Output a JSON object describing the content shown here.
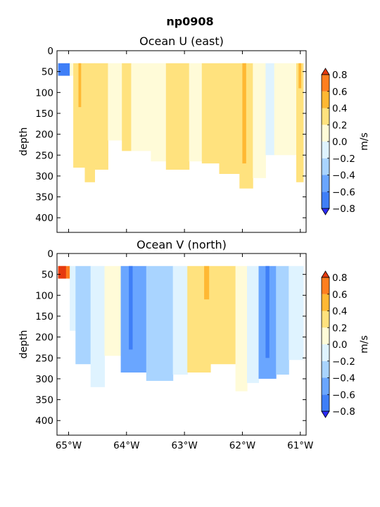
{
  "chart_data": {
    "type": "contour",
    "suptitle": "np0908",
    "x_ticks": [
      "65°W",
      "64°W",
      "63°W",
      "62°W",
      "61°W"
    ],
    "x_tick_values": [
      -65,
      -64,
      -63,
      -62,
      -61
    ],
    "xlim": [
      -65.2,
      -60.9
    ],
    "levels": [
      -0.8,
      -0.6,
      -0.4,
      -0.2,
      0.0,
      0.2,
      0.4,
      0.6,
      0.8
    ],
    "level_labels": [
      "0.8",
      "0.6",
      "0.4",
      "0.2",
      "0.0",
      "−0.2",
      "−0.4",
      "−0.6",
      "−0.8"
    ],
    "colors": [
      "#2b2bff",
      "#3f7ff7",
      "#6aa6ff",
      "#a9d4ff",
      "#dff3ff",
      "#fffbd8",
      "#ffe27e",
      "#ffb833",
      "#ff7f1f",
      "#e63a0f"
    ],
    "panels": [
      {
        "title": "Ocean U (east)",
        "ylabel": "depth",
        "y_ticks": [
          "0",
          "50",
          "100",
          "150",
          "200",
          "250",
          "300",
          "350",
          "400"
        ],
        "y_tick_values": [
          0,
          50,
          100,
          150,
          200,
          250,
          300,
          350,
          400
        ],
        "ylim": [
          435,
          0
        ],
        "colorbar_label": "m/s",
        "columns": [
          {
            "x": [
              -65.18,
              -64.98
            ],
            "depth": [
              30,
              60
            ],
            "level": -0.7
          },
          {
            "x": [
              -64.98,
              -64.92
            ],
            "depth": [
              30,
              60
            ],
            "level": 0.1
          },
          {
            "x": [
              -64.92,
              -64.72
            ],
            "depth": [
              30,
              280
            ],
            "level": 0.3
          },
          {
            "x": [
              -64.72,
              -64.55
            ],
            "depth": [
              30,
              315
            ],
            "level": 0.3
          },
          {
            "x": [
              -64.55,
              -64.32
            ],
            "depth": [
              30,
              285
            ],
            "level": 0.3
          },
          {
            "x": [
              -64.32,
              -64.08
            ],
            "depth": [
              30,
              215
            ],
            "level": 0.1
          },
          {
            "x": [
              -64.08,
              -63.92
            ],
            "depth": [
              30,
              240
            ],
            "level": 0.3
          },
          {
            "x": [
              -63.92,
              -63.58
            ],
            "depth": [
              30,
              240
            ],
            "level": 0.1
          },
          {
            "x": [
              -63.58,
              -63.32
            ],
            "depth": [
              30,
              265
            ],
            "level": 0.1
          },
          {
            "x": [
              -63.32,
              -62.92
            ],
            "depth": [
              30,
              285
            ],
            "level": 0.3
          },
          {
            "x": [
              -62.92,
              -62.7
            ],
            "depth": [
              30,
              265
            ],
            "level": 0.1
          },
          {
            "x": [
              -62.7,
              -62.4
            ],
            "depth": [
              30,
              270
            ],
            "level": 0.3
          },
          {
            "x": [
              -62.4,
              -62.05
            ],
            "depth": [
              30,
              295
            ],
            "level": 0.3
          },
          {
            "x": [
              -62.05,
              -61.82
            ],
            "depth": [
              30,
              330
            ],
            "level": 0.3
          },
          {
            "x": [
              -61.82,
              -61.6
            ],
            "depth": [
              30,
              305
            ],
            "level": 0.1
          },
          {
            "x": [
              -61.6,
              -61.45
            ],
            "depth": [
              30,
              250
            ],
            "level": -0.1
          },
          {
            "x": [
              -61.45,
              -61.07
            ],
            "depth": [
              30,
              250
            ],
            "level": 0.1
          },
          {
            "x": [
              -61.07,
              -60.95
            ],
            "depth": [
              30,
              315
            ],
            "level": 0.3
          }
        ],
        "highlights": [
          {
            "x": [
              -64.83,
              -64.79
            ],
            "depth": [
              30,
              135
            ],
            "level": 0.5
          },
          {
            "x": [
              -62.0,
              -61.94
            ],
            "depth": [
              30,
              270
            ],
            "level": 0.5
          },
          {
            "x": [
              -61.03,
              -60.99
            ],
            "depth": [
              30,
              90
            ],
            "level": 0.5
          }
        ]
      },
      {
        "title": "Ocean V (north)",
        "ylabel": "depth",
        "y_ticks": [
          "0",
          "50",
          "100",
          "150",
          "200",
          "250",
          "300",
          "350",
          "400"
        ],
        "y_tick_values": [
          0,
          50,
          100,
          150,
          200,
          250,
          300,
          350,
          400
        ],
        "ylim": [
          435,
          0
        ],
        "colorbar_label": "m/s",
        "columns": [
          {
            "x": [
              -65.18,
              -64.98
            ],
            "depth": [
              30,
              60
            ],
            "level": 0.7
          },
          {
            "x": [
              -64.98,
              -64.88
            ],
            "depth": [
              30,
              185
            ],
            "level": -0.1
          },
          {
            "x": [
              -64.88,
              -64.62
            ],
            "depth": [
              30,
              265
            ],
            "level": -0.3
          },
          {
            "x": [
              -64.62,
              -64.38
            ],
            "depth": [
              30,
              320
            ],
            "level": -0.1
          },
          {
            "x": [
              -64.38,
              -64.1
            ],
            "depth": [
              30,
              245
            ],
            "level": 0.1
          },
          {
            "x": [
              -64.1,
              -63.66
            ],
            "depth": [
              30,
              285
            ],
            "level": -0.5
          },
          {
            "x": [
              -63.66,
              -63.2
            ],
            "depth": [
              30,
              305
            ],
            "level": -0.3
          },
          {
            "x": [
              -63.2,
              -62.95
            ],
            "depth": [
              30,
              290
            ],
            "level": -0.1
          },
          {
            "x": [
              -62.95,
              -62.55
            ],
            "depth": [
              30,
              285
            ],
            "level": 0.3
          },
          {
            "x": [
              -62.55,
              -62.12
            ],
            "depth": [
              30,
              265
            ],
            "level": 0.3
          },
          {
            "x": [
              -62.12,
              -61.92
            ],
            "depth": [
              30,
              330
            ],
            "level": 0.1
          },
          {
            "x": [
              -61.92,
              -61.72
            ],
            "depth": [
              30,
              310
            ],
            "level": -0.1
          },
          {
            "x": [
              -61.72,
              -61.42
            ],
            "depth": [
              30,
              300
            ],
            "level": -0.5
          },
          {
            "x": [
              -61.42,
              -61.2
            ],
            "depth": [
              30,
              290
            ],
            "level": -0.3
          },
          {
            "x": [
              -61.2,
              -60.95
            ],
            "depth": [
              30,
              255
            ],
            "level": -0.1
          }
        ],
        "highlights": [
          {
            "x": [
              -65.18,
              -65.05
            ],
            "depth": [
              30,
              60
            ],
            "level": 0.9
          },
          {
            "x": [
              -63.96,
              -63.9
            ],
            "depth": [
              30,
              230
            ],
            "level": -0.7
          },
          {
            "x": [
              -62.66,
              -62.58
            ],
            "depth": [
              30,
              110
            ],
            "level": 0.5
          },
          {
            "x": [
              -61.6,
              -61.54
            ],
            "depth": [
              30,
              250
            ],
            "level": -0.7
          }
        ]
      }
    ]
  }
}
